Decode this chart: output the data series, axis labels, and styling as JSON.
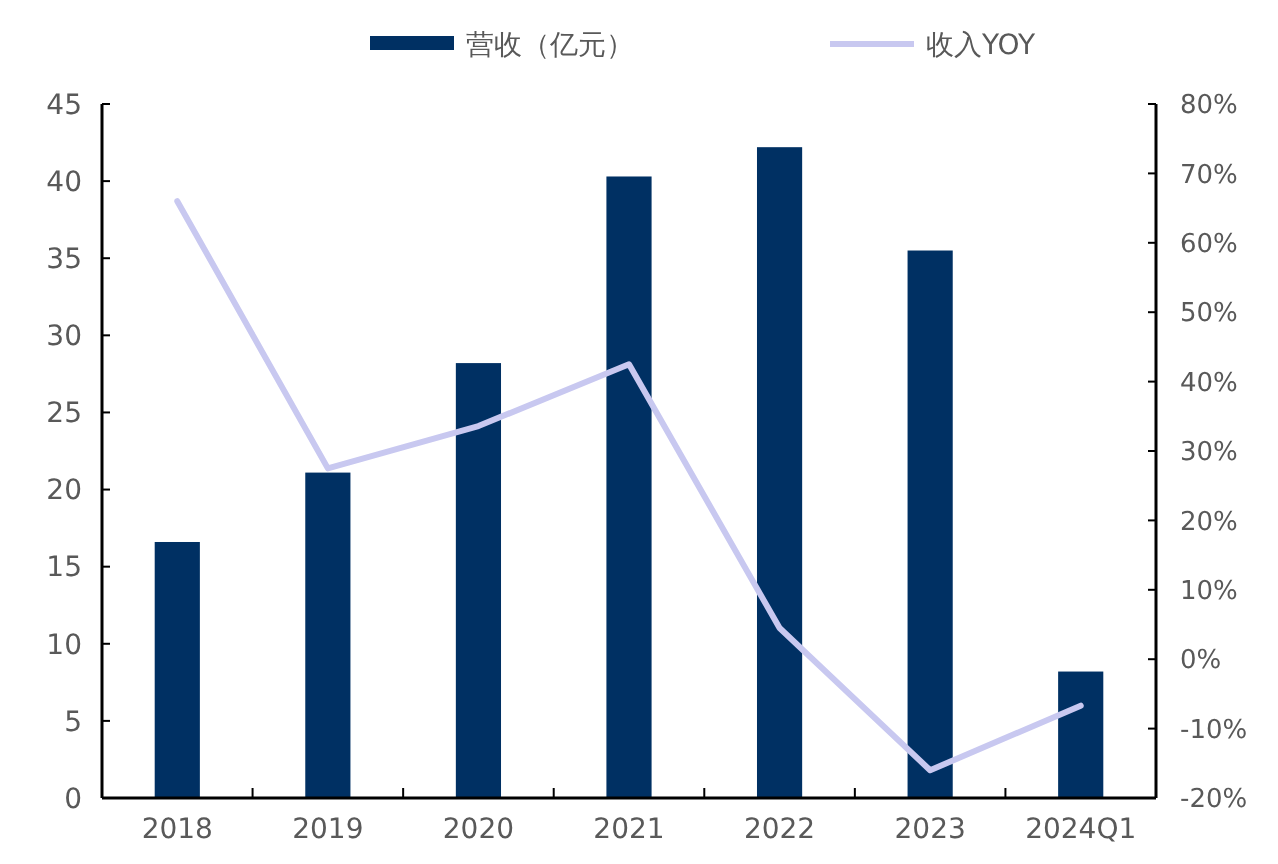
{
  "chart_data": {
    "type": "bar",
    "categories": [
      "2018",
      "2019",
      "2020",
      "2021",
      "2022",
      "2023",
      "2024Q1"
    ],
    "series": [
      {
        "name": "营收（亿元）",
        "color": "#003063",
        "values": [
          16.6,
          21.1,
          28.2,
          40.3,
          42.2,
          35.5,
          8.2
        ]
      },
      {
        "name": "收入YOY",
        "type": "line",
        "axis": "y2",
        "color": "#c8c8f0",
        "values": [
          66,
          27.5,
          33.6,
          42.5,
          4.5,
          -16,
          -6.7
        ]
      }
    ],
    "ylim": [
      0,
      45
    ],
    "yticks": [
      0,
      5,
      10,
      15,
      20,
      25,
      30,
      35,
      40,
      45
    ],
    "y2lim": [
      -20,
      80
    ],
    "y2ticks": [
      {
        "value": -20,
        "label": "-20%"
      },
      {
        "value": -10,
        "label": "-10%"
      },
      {
        "value": 0,
        "label": "0%"
      },
      {
        "value": 10,
        "label": "10%"
      },
      {
        "value": 20,
        "label": "20%"
      },
      {
        "value": 30,
        "label": "30%"
      },
      {
        "value": 40,
        "label": "40%"
      },
      {
        "value": 50,
        "label": "50%"
      },
      {
        "value": 60,
        "label": "60%"
      },
      {
        "value": 70,
        "label": "70%"
      },
      {
        "value": 80,
        "label": "80%"
      }
    ],
    "legend": "top",
    "grid": false,
    "marker": "none"
  }
}
